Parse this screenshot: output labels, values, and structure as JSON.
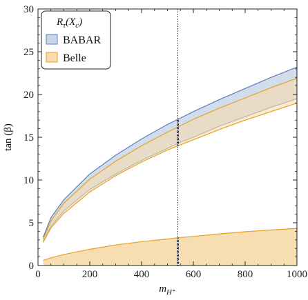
{
  "chart_data": {
    "type": "area",
    "xlabel": "m_H+",
    "ylabel": "tan (β)",
    "xlim": [
      0,
      1000
    ],
    "ylim": [
      0,
      30
    ],
    "xticks": [
      0,
      200,
      400,
      600,
      800,
      1000
    ],
    "yticks": [
      0,
      5,
      10,
      15,
      20,
      25,
      30
    ],
    "x_tick_labels": [
      "0",
      "200",
      "400",
      "600",
      "800",
      "1000"
    ],
    "y_tick_labels": [
      "0",
      "5",
      "10",
      "15",
      "20",
      "25",
      "30"
    ],
    "grid": false,
    "legend_placement": "top-left",
    "legend_title": "Rτ(Xc)",
    "colors": {
      "babar_fill": "#c9d6ea",
      "babar_edge": "#5a7fb8",
      "belle_fill": "#f6dcae",
      "belle_edge": "#e8a020",
      "vline": "#333333",
      "hatch": "#111111"
    },
    "vertical_line_x": 540,
    "series": [
      {
        "name": "BABAR",
        "x": [
          20,
          50,
          100,
          200,
          300,
          400,
          500,
          540,
          600,
          700,
          800,
          900,
          1000
        ],
        "upper": [
          3.3,
          5.6,
          7.7,
          10.7,
          12.9,
          14.8,
          16.5,
          17.1,
          18.0,
          19.4,
          20.7,
          22.0,
          23.2
        ],
        "lower": [
          2.8,
          4.6,
          6.4,
          8.9,
          10.7,
          12.3,
          13.7,
          14.3,
          15.0,
          16.3,
          17.4,
          18.5,
          19.5
        ]
      },
      {
        "name": "Belle",
        "x": [
          20,
          50,
          100,
          200,
          300,
          400,
          500,
          540,
          600,
          700,
          800,
          900,
          1000
        ],
        "upper": [
          3.1,
          5.2,
          7.3,
          10.1,
          12.2,
          14.0,
          15.6,
          16.2,
          17.1,
          18.4,
          19.6,
          20.8,
          21.9
        ],
        "lower": [
          2.7,
          4.4,
          6.1,
          8.6,
          10.5,
          12.1,
          13.5,
          14.0,
          14.7,
          15.9,
          17.0,
          18.0,
          19.0
        ]
      },
      {
        "name": "Belle",
        "x": [
          20,
          50,
          100,
          200,
          300,
          400,
          500,
          540,
          600,
          700,
          800,
          900,
          1000
        ],
        "upper": [
          0.6,
          0.9,
          1.3,
          1.9,
          2.4,
          2.8,
          3.1,
          3.25,
          3.4,
          3.7,
          3.95,
          4.15,
          4.35
        ],
        "lower": [
          0,
          0,
          0,
          0,
          0,
          0,
          0,
          0,
          0,
          0,
          0,
          0,
          0
        ]
      }
    ]
  }
}
